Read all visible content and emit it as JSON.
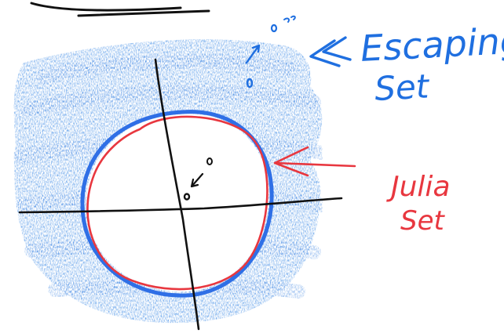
{
  "labels": {
    "escaping_line1": "Escaping",
    "escaping_line2": "Set",
    "julia_line1": "Julia",
    "julia_line2": "Set"
  },
  "colors": {
    "escaping_shading": "#3d8be6",
    "escaping_text": "#1f6fe0",
    "julia_curve": "#e8373f",
    "julia_text": "#e8373f",
    "axes": "#111111",
    "points": "#111111",
    "blue_outline": "#2f6fe6"
  },
  "icons": {
    "escaping_arrow": "double-chevron-arrow-icon",
    "julia_arrow": "arrow-left-icon",
    "orbit_escape_arrow": "arrow-up-right-icon",
    "orbit_converge_arrow": "arrow-down-left-icon"
  }
}
